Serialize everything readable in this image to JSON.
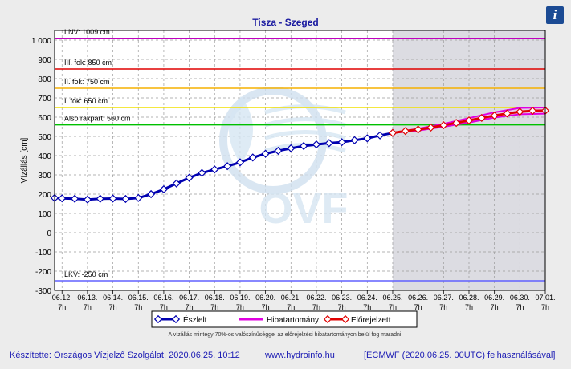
{
  "title": "Tisza - Szeged",
  "info_icon": "i",
  "note": "A vízállás mintegy 70%-os valószínűséggel az előrejelzési hibatartományon belül fog maradni.",
  "footer": {
    "made_by": "Készítette: Országos Vízjelző Szolgálat, 2020.06.25. 10:12",
    "website": "www.hydroinfo.hu",
    "model": "[ECMWF (2020.06.25. 00UTC) felhasználásával]"
  },
  "watermark": "OVF",
  "chart_data": {
    "type": "line",
    "ylabel": "Vízállás [cm]",
    "ylim": [
      -300,
      1050
    ],
    "yticks": [
      -300,
      -200,
      -100,
      0,
      100,
      200,
      300,
      400,
      500,
      600,
      700,
      800,
      900,
      1000
    ],
    "ytick_labels": [
      "-300",
      "-200",
      "-100",
      "0",
      "100",
      "200",
      "300",
      "400",
      "500",
      "600",
      "700",
      "800",
      "900",
      "1 000"
    ],
    "xlim": [
      "2020-06-12T00:00",
      "2020-07-01T07:00"
    ],
    "x_tick_dates": [
      "06.12.",
      "06.13.",
      "06.14.",
      "06.15.",
      "06.16.",
      "06.17.",
      "06.18.",
      "06.19.",
      "06.20.",
      "06.21.",
      "06.22.",
      "06.23.",
      "06.24.",
      "06.25.",
      "06.26.",
      "06.27.",
      "06.28.",
      "06.29.",
      "06.30.",
      "07.01."
    ],
    "x_tick_hour": "7h",
    "forecast_start": "2020-06-25T07:00",
    "grid": true,
    "legend_position": "bottom",
    "reference_lines": [
      {
        "label": "LNV: 1009 cm",
        "value": 1009,
        "color": "#c000c0"
      },
      {
        "label": "III. fok: 850 cm",
        "value": 850,
        "color": "#e00000"
      },
      {
        "label": "II. fok: 750 cm",
        "value": 750,
        "color": "#f5b000"
      },
      {
        "label": "I. fok: 650 cm",
        "value": 650,
        "color": "#f0e000"
      },
      {
        "label": "Alsó rakpart: 560 cm",
        "value": 560,
        "color": "#00c000"
      },
      {
        "label": "LKV: -250 cm",
        "value": -250,
        "color": "#6060ff"
      }
    ],
    "series": [
      {
        "name": "Észlelt",
        "color": "#0000b0",
        "points": [
          [
            "2020-06-12T00:00",
            180
          ],
          [
            "2020-06-12T07:00",
            178
          ],
          [
            "2020-06-12T19:00",
            176
          ],
          [
            "2020-06-13T07:00",
            172
          ],
          [
            "2020-06-13T19:00",
            176
          ],
          [
            "2020-06-14T07:00",
            177
          ],
          [
            "2020-06-14T19:00",
            175
          ],
          [
            "2020-06-15T07:00",
            180
          ],
          [
            "2020-06-15T19:00",
            200
          ],
          [
            "2020-06-16T07:00",
            225
          ],
          [
            "2020-06-16T19:00",
            255
          ],
          [
            "2020-06-17T07:00",
            285
          ],
          [
            "2020-06-17T19:00",
            310
          ],
          [
            "2020-06-18T07:00",
            328
          ],
          [
            "2020-06-18T19:00",
            345
          ],
          [
            "2020-06-19T07:00",
            365
          ],
          [
            "2020-06-19T19:00",
            390
          ],
          [
            "2020-06-20T07:00",
            410
          ],
          [
            "2020-06-20T19:00",
            425
          ],
          [
            "2020-06-21T07:00",
            438
          ],
          [
            "2020-06-21T19:00",
            450
          ],
          [
            "2020-06-22T07:00",
            458
          ],
          [
            "2020-06-22T19:00",
            465
          ],
          [
            "2020-06-23T07:00",
            470
          ],
          [
            "2020-06-23T19:00",
            480
          ],
          [
            "2020-06-24T07:00",
            490
          ],
          [
            "2020-06-24T19:00",
            505
          ],
          [
            "2020-06-25T07:00",
            518
          ]
        ]
      },
      {
        "name": "Hibatartomány",
        "color": "#e000e0",
        "upper": [
          [
            "2020-06-25T07:00",
            518
          ],
          [
            "2020-06-26T07:00",
            540
          ],
          [
            "2020-06-27T07:00",
            565
          ],
          [
            "2020-06-28T07:00",
            595
          ],
          [
            "2020-06-29T07:00",
            625
          ],
          [
            "2020-06-30T07:00",
            648
          ],
          [
            "2020-07-01T07:00",
            650
          ]
        ],
        "lower": [
          [
            "2020-06-25T07:00",
            518
          ],
          [
            "2020-06-26T07:00",
            530
          ],
          [
            "2020-06-27T07:00",
            550
          ],
          [
            "2020-06-28T07:00",
            572
          ],
          [
            "2020-06-29T07:00",
            598
          ],
          [
            "2020-06-30T07:00",
            615
          ],
          [
            "2020-07-01T07:00",
            618
          ]
        ]
      },
      {
        "name": "Előrejelzett",
        "color": "#e00000",
        "points": [
          [
            "2020-06-25T07:00",
            518
          ],
          [
            "2020-06-25T19:00",
            528
          ],
          [
            "2020-06-26T07:00",
            536
          ],
          [
            "2020-06-26T19:00",
            546
          ],
          [
            "2020-06-27T07:00",
            558
          ],
          [
            "2020-06-27T19:00",
            570
          ],
          [
            "2020-06-28T07:00",
            583
          ],
          [
            "2020-06-28T19:00",
            596
          ],
          [
            "2020-06-29T07:00",
            608
          ],
          [
            "2020-06-29T19:00",
            619
          ],
          [
            "2020-06-30T07:00",
            628
          ],
          [
            "2020-06-30T19:00",
            633
          ],
          [
            "2020-07-01T07:00",
            634
          ]
        ]
      }
    ]
  }
}
